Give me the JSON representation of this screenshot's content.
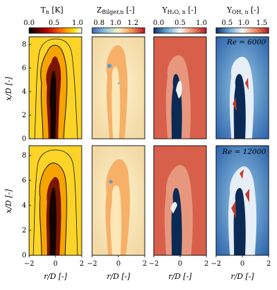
{
  "columns": [
    {
      "title_main": "T",
      "title_sub": "n",
      "title_unit": " [K]",
      "colorbar_ticks": [
        "0.0",
        "0.5",
        "1.0"
      ],
      "colormap": "hot"
    },
    {
      "title_main": "Z",
      "title_sub": "Bilger,n",
      "title_unit": " [-]",
      "colorbar_ticks": [
        "0.8",
        "1.0",
        "1.2"
      ],
      "colormap": "rdylbu_r"
    },
    {
      "title_main": "Y",
      "title_sub": "H₂O, n",
      "title_unit": " [-]",
      "colorbar_ticks": [
        "0.0",
        "0.5",
        "1.0"
      ],
      "colormap": "rdbu_r"
    },
    {
      "title_main": "Y",
      "title_sub": "OH, n",
      "title_unit": " [-]",
      "colorbar_ticks": [
        "0.5",
        "1.0",
        "1.5"
      ],
      "colormap": "rdbu_r"
    }
  ],
  "rows": [
    {
      "annotation": "Re = 6000"
    },
    {
      "annotation": "Re = 12000"
    }
  ],
  "y_axis": {
    "label": "x/D [-]",
    "ticks": [
      "0",
      "2",
      "4",
      "6",
      "8"
    ],
    "range": [
      0,
      8.7
    ]
  },
  "x_axis": {
    "label": "r/D [-]",
    "ticks": [
      "−2",
      "0",
      "2"
    ],
    "range": [
      -2,
      2
    ]
  },
  "colors": {
    "flame_yellow": "#fcd427",
    "core_black": "#1a0a00",
    "z_background": "#f7e3b0",
    "h2o_background": "#d8604b",
    "oh_background": "#2f6bb0",
    "navy_core": "#0b2a55"
  }
}
